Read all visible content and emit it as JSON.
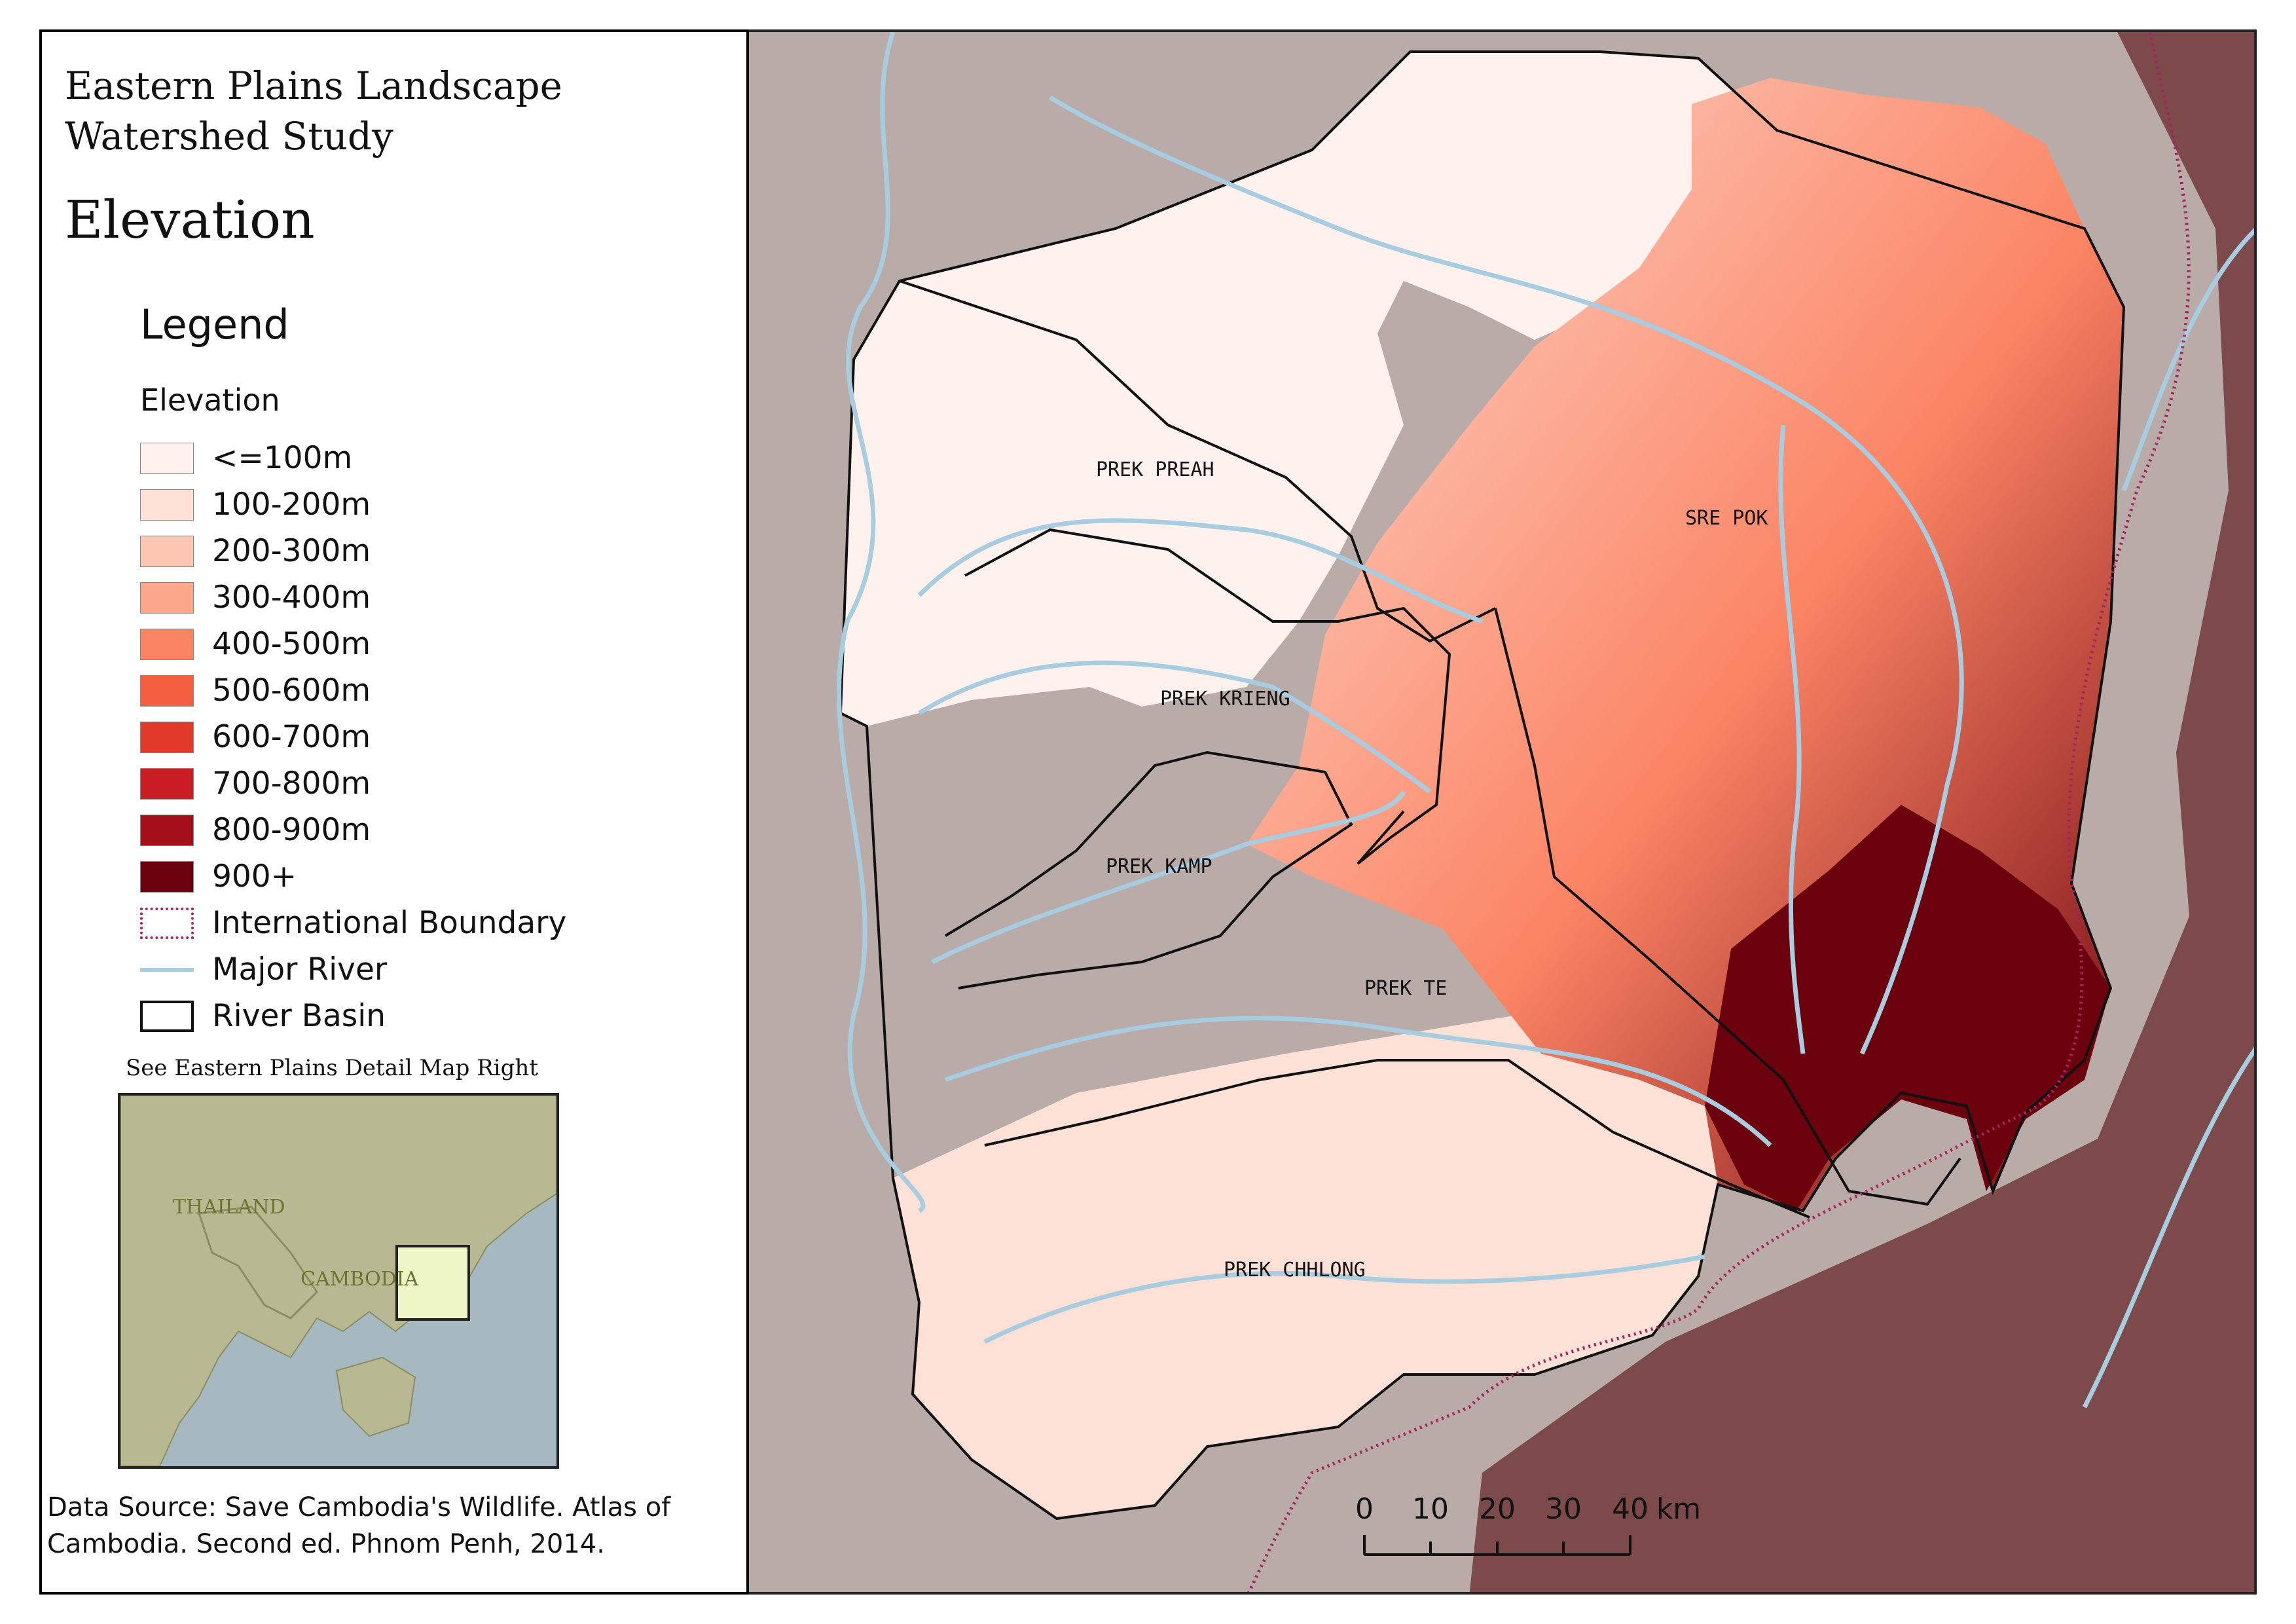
{
  "title": {
    "line1": "Eastern Plains Landscape",
    "line2": "Watershed Study",
    "map_subject": "Elevation"
  },
  "legend": {
    "title": "Legend",
    "subtitle": "Elevation",
    "elevation_classes": [
      {
        "label": "<=100m",
        "color": "#fff2ee"
      },
      {
        "label": "100-200m",
        "color": "#fde0d6"
      },
      {
        "label": "200-300m",
        "color": "#fcc6b2"
      },
      {
        "label": "300-400m",
        "color": "#fca68a"
      },
      {
        "label": "400-500m",
        "color": "#fb8464"
      },
      {
        "label": "500-600m",
        "color": "#f4603f"
      },
      {
        "label": "600-700m",
        "color": "#e2392b"
      },
      {
        "label": "700-800m",
        "color": "#c81d22"
      },
      {
        "label": "800-900m",
        "color": "#a3101a"
      },
      {
        "label": "900+",
        "color": "#6b010d"
      }
    ],
    "international_boundary_label": "International Boundary",
    "major_river_label": "Major River",
    "river_basin_label": "River Basin",
    "boundary_color": "#a8225e",
    "river_color": "#a8cce0"
  },
  "inset_note": "See Eastern Plains Detail Map Right",
  "inset_map": {
    "labels": {
      "thailand": "THAILAND",
      "cambodia": "CAMBODIA"
    },
    "land_color": "#b8b992",
    "sea_color": "#a6b8c0",
    "highlight_color": "#eef6c8"
  },
  "source": "Data Source: Save Cambodia's Wildlife. Atlas of Cambodia. Second ed. Phnom Penh, 2014.",
  "map": {
    "basins": [
      {
        "name": "PREK PREAH"
      },
      {
        "name": "SRE POK"
      },
      {
        "name": "PREK KRIENG"
      },
      {
        "name": "PREK KAMP"
      },
      {
        "name": "PREK TE"
      },
      {
        "name": "PREK CHHLONG"
      }
    ],
    "background_color": "#b9aba8",
    "outside_east_color": "#7c4a4a"
  },
  "scale_bar": {
    "ticks": [
      "0",
      "10",
      "20",
      "30",
      "40"
    ],
    "unit": "km"
  }
}
